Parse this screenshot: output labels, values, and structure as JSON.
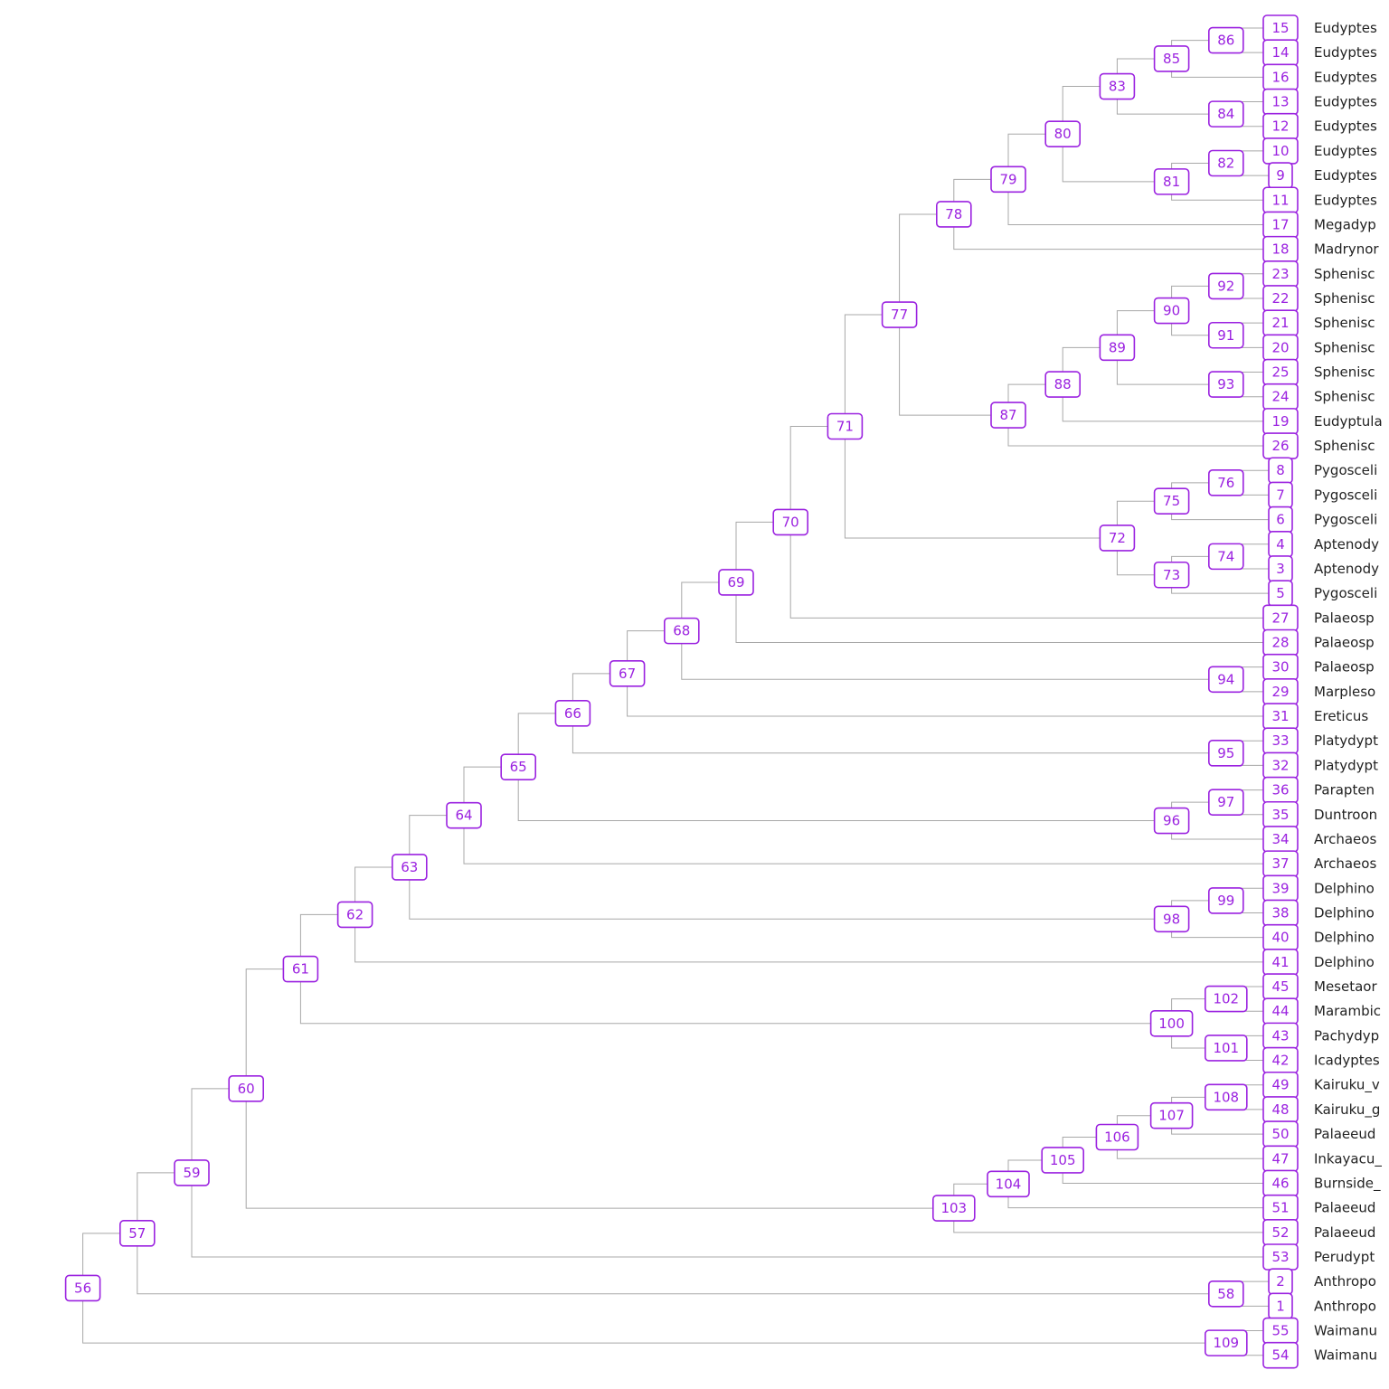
{
  "tree": {
    "colors": {
      "edge": "#a8a8a8",
      "node": "#9b22e0",
      "tip_text": "#222222"
    },
    "tips": [
      {
        "id": 15,
        "label": "Eudyptes"
      },
      {
        "id": 14,
        "label": "Eudyptes"
      },
      {
        "id": 16,
        "label": "Eudyptes"
      },
      {
        "id": 13,
        "label": "Eudyptes"
      },
      {
        "id": 12,
        "label": "Eudyptes"
      },
      {
        "id": 10,
        "label": "Eudyptes"
      },
      {
        "id": 9,
        "label": "Eudyptes"
      },
      {
        "id": 11,
        "label": "Eudyptes"
      },
      {
        "id": 17,
        "label": "Megadyp"
      },
      {
        "id": 18,
        "label": "Madrynor"
      },
      {
        "id": 23,
        "label": "Sphenisc"
      },
      {
        "id": 22,
        "label": "Sphenisc"
      },
      {
        "id": 21,
        "label": "Sphenisc"
      },
      {
        "id": 20,
        "label": "Sphenisc"
      },
      {
        "id": 25,
        "label": "Sphenisc"
      },
      {
        "id": 24,
        "label": "Sphenisc"
      },
      {
        "id": 19,
        "label": "Eudyptula"
      },
      {
        "id": 26,
        "label": "Sphenisc"
      },
      {
        "id": 8,
        "label": "Pygosceli"
      },
      {
        "id": 7,
        "label": "Pygosceli"
      },
      {
        "id": 6,
        "label": "Pygosceli"
      },
      {
        "id": 4,
        "label": "Aptenody"
      },
      {
        "id": 3,
        "label": "Aptenody"
      },
      {
        "id": 5,
        "label": "Pygosceli"
      },
      {
        "id": 27,
        "label": "Palaeosp"
      },
      {
        "id": 28,
        "label": "Palaeosp"
      },
      {
        "id": 30,
        "label": "Palaeosp"
      },
      {
        "id": 29,
        "label": "Marpleso"
      },
      {
        "id": 31,
        "label": "Ereticus"
      },
      {
        "id": 33,
        "label": "Platydypt"
      },
      {
        "id": 32,
        "label": "Platydypt"
      },
      {
        "id": 36,
        "label": "Parapten"
      },
      {
        "id": 35,
        "label": "Duntroon"
      },
      {
        "id": 34,
        "label": "Archaeos"
      },
      {
        "id": 37,
        "label": "Archaeos"
      },
      {
        "id": 39,
        "label": "Delphino"
      },
      {
        "id": 38,
        "label": "Delphino"
      },
      {
        "id": 40,
        "label": "Delphino"
      },
      {
        "id": 41,
        "label": "Delphino"
      },
      {
        "id": 45,
        "label": "Mesetaor"
      },
      {
        "id": 44,
        "label": "Marambic"
      },
      {
        "id": 43,
        "label": "Pachydyp"
      },
      {
        "id": 42,
        "label": "Icadyptes"
      },
      {
        "id": 49,
        "label": "Kairuku_v"
      },
      {
        "id": 48,
        "label": "Kairuku_g"
      },
      {
        "id": 50,
        "label": "Palaeeud"
      },
      {
        "id": 47,
        "label": "Inkayacu_"
      },
      {
        "id": 46,
        "label": "Burnside_"
      },
      {
        "id": 51,
        "label": "Palaeeud"
      },
      {
        "id": 52,
        "label": "Palaeeud"
      },
      {
        "id": 53,
        "label": "Perudypt"
      },
      {
        "id": 2,
        "label": "Anthropo"
      },
      {
        "id": 1,
        "label": "Anthropo"
      },
      {
        "id": 55,
        "label": "Waimanu"
      },
      {
        "id": 54,
        "label": "Waimanu"
      }
    ],
    "internal_nodes": [
      {
        "id": 56,
        "children": [
          57,
          109
        ]
      },
      {
        "id": 57,
        "children": [
          59,
          58
        ]
      },
      {
        "id": 58,
        "children": [
          2,
          1
        ]
      },
      {
        "id": 59,
        "children": [
          60,
          53
        ]
      },
      {
        "id": 60,
        "children": [
          61,
          103
        ]
      },
      {
        "id": 61,
        "children": [
          62,
          100
        ]
      },
      {
        "id": 62,
        "children": [
          63,
          41
        ]
      },
      {
        "id": 63,
        "children": [
          64,
          98
        ]
      },
      {
        "id": 64,
        "children": [
          65,
          37
        ]
      },
      {
        "id": 65,
        "children": [
          66,
          96
        ]
      },
      {
        "id": 66,
        "children": [
          67,
          95
        ]
      },
      {
        "id": 67,
        "children": [
          68,
          31
        ]
      },
      {
        "id": 68,
        "children": [
          69,
          94
        ]
      },
      {
        "id": 69,
        "children": [
          70,
          28
        ]
      },
      {
        "id": 70,
        "children": [
          71,
          27
        ]
      },
      {
        "id": 71,
        "children": [
          77,
          72
        ]
      },
      {
        "id": 72,
        "children": [
          75,
          73
        ]
      },
      {
        "id": 73,
        "children": [
          74,
          5
        ]
      },
      {
        "id": 74,
        "children": [
          4,
          3
        ]
      },
      {
        "id": 75,
        "children": [
          76,
          6
        ]
      },
      {
        "id": 76,
        "children": [
          8,
          7
        ]
      },
      {
        "id": 77,
        "children": [
          78,
          87
        ]
      },
      {
        "id": 78,
        "children": [
          79,
          18
        ]
      },
      {
        "id": 79,
        "children": [
          80,
          17
        ]
      },
      {
        "id": 80,
        "children": [
          83,
          81
        ]
      },
      {
        "id": 81,
        "children": [
          82,
          11
        ]
      },
      {
        "id": 82,
        "children": [
          10,
          9
        ]
      },
      {
        "id": 83,
        "children": [
          85,
          84
        ]
      },
      {
        "id": 84,
        "children": [
          13,
          12
        ]
      },
      {
        "id": 85,
        "children": [
          86,
          16
        ]
      },
      {
        "id": 86,
        "children": [
          15,
          14
        ]
      },
      {
        "id": 87,
        "children": [
          88,
          26
        ]
      },
      {
        "id": 88,
        "children": [
          89,
          19
        ]
      },
      {
        "id": 89,
        "children": [
          90,
          93
        ]
      },
      {
        "id": 90,
        "children": [
          92,
          91
        ]
      },
      {
        "id": 91,
        "children": [
          21,
          20
        ]
      },
      {
        "id": 92,
        "children": [
          23,
          22
        ]
      },
      {
        "id": 93,
        "children": [
          25,
          24
        ]
      },
      {
        "id": 94,
        "children": [
          30,
          29
        ]
      },
      {
        "id": 95,
        "children": [
          33,
          32
        ]
      },
      {
        "id": 96,
        "children": [
          97,
          34
        ]
      },
      {
        "id": 97,
        "children": [
          36,
          35
        ]
      },
      {
        "id": 98,
        "children": [
          99,
          40
        ]
      },
      {
        "id": 99,
        "children": [
          39,
          38
        ]
      },
      {
        "id": 100,
        "children": [
          102,
          101
        ]
      },
      {
        "id": 101,
        "children": [
          43,
          42
        ]
      },
      {
        "id": 102,
        "children": [
          45,
          44
        ]
      },
      {
        "id": 103,
        "children": [
          104,
          52
        ]
      },
      {
        "id": 104,
        "children": [
          105,
          51
        ]
      },
      {
        "id": 105,
        "children": [
          106,
          46
        ]
      },
      {
        "id": 106,
        "children": [
          107,
          47
        ]
      },
      {
        "id": 107,
        "children": [
          108,
          50
        ]
      },
      {
        "id": 108,
        "children": [
          49,
          48
        ]
      },
      {
        "id": 109,
        "children": [
          55,
          54
        ]
      }
    ]
  }
}
